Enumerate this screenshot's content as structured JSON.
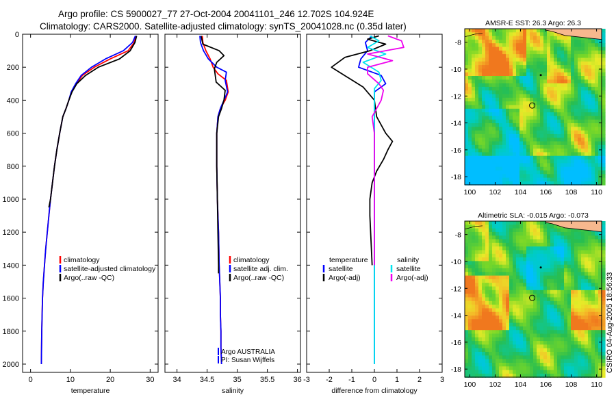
{
  "header": {
    "line1": "Argo profile: CS 5900027_77 27-Oct-2004 20041101_246 12.702S 104.924E",
    "line2": "Climatology: CARS2000. Satellite-adjusted climatology: synTS_20041028.nc (0.35d later)"
  },
  "side_label": "CSIRO 04-Aug-2005 18:56:33",
  "colors": {
    "climatology": "#ff0000",
    "satellite": "#0000ff",
    "argo": "#000000",
    "cyan": "#00e5ee",
    "magenta": "#ee00ee",
    "land": "#f7b88e"
  },
  "chart_data": [
    {
      "type": "line",
      "name": "temperature",
      "xlabel": "temperature",
      "xlim": [
        -2,
        32
      ],
      "ylim": [
        2050,
        0
      ],
      "xticks": [
        "0",
        "10",
        "20",
        "30"
      ],
      "xtick_values": [
        0,
        10,
        20,
        30
      ],
      "yticks": [
        "0",
        "200",
        "400",
        "600",
        "800",
        "1000",
        "1200",
        "1400",
        "1600",
        "1800",
        "2000"
      ],
      "ytick_values": [
        0,
        200,
        400,
        600,
        800,
        1000,
        1200,
        1400,
        1600,
        1800,
        2000
      ],
      "legend": [
        "climatology",
        "satellite-adjusted climatology",
        "Argo(..raw -QC)"
      ],
      "series": [
        {
          "name": "climatology",
          "color": "red",
          "x": [
            26.4,
            26.0,
            24.5,
            20.0,
            16.0,
            13.0,
            11.5,
            10.3,
            9.6,
            8.9,
            8.1,
            7.3,
            6.6,
            6.0,
            5.5,
            5.0,
            4.6,
            4.2,
            3.8,
            3.5,
            3.2,
            3.0,
            2.8,
            2.7
          ],
          "y": [
            10,
            50,
            100,
            150,
            200,
            250,
            300,
            350,
            400,
            450,
            500,
            600,
            700,
            800,
            900,
            1000,
            1100,
            1200,
            1300,
            1400,
            1500,
            1600,
            1800,
            2000
          ]
        },
        {
          "name": "satellite",
          "color": "blue",
          "x": [
            26.3,
            25.6,
            23.3,
            18.8,
            15.3,
            12.7,
            11.3,
            10.2,
            9.6,
            8.9,
            8.1,
            7.3,
            6.6,
            6.0,
            5.5,
            5.0,
            4.6,
            4.2,
            3.8,
            3.5,
            3.2,
            3.0,
            2.8,
            2.7
          ],
          "y": [
            10,
            50,
            100,
            150,
            200,
            250,
            300,
            350,
            400,
            450,
            500,
            600,
            700,
            800,
            900,
            1000,
            1100,
            1200,
            1300,
            1400,
            1500,
            1600,
            1800,
            2000
          ]
        },
        {
          "name": "argo",
          "color": "black",
          "x": [
            26.6,
            26.2,
            25.0,
            22.3,
            17.0,
            13.8,
            11.6,
            10.4,
            9.6,
            8.9,
            8.1,
            7.3,
            6.6,
            6.0,
            5.5,
            5.0,
            4.6
          ],
          "y": [
            10,
            50,
            100,
            150,
            200,
            250,
            300,
            350,
            400,
            450,
            500,
            600,
            700,
            800,
            900,
            1000,
            1050
          ]
        }
      ]
    },
    {
      "type": "line",
      "name": "salinity",
      "xlabel": "salinity",
      "xlim": [
        33.8,
        36.05
      ],
      "ylim": [
        2050,
        0
      ],
      "xticks": [
        "34",
        "34.5",
        "35",
        "35.5",
        "36"
      ],
      "xtick_values": [
        34,
        34.5,
        35,
        35.5,
        36
      ],
      "legend": [
        "climatology",
        "satellite adj. clim.",
        "Argo(..raw -QC)"
      ],
      "annotation": [
        "Argo AUSTRALIA",
        "PI: Susan Wijffels"
      ],
      "series": [
        {
          "name": "climatology",
          "color": "red",
          "x": [
            34.42,
            34.43,
            34.48,
            34.55,
            34.6,
            34.68,
            34.82,
            34.85,
            34.8,
            34.72,
            34.68,
            34.66,
            34.66,
            34.67,
            34.69,
            34.7,
            34.71,
            34.72,
            34.72,
            34.73,
            34.73,
            34.74
          ],
          "y": [
            10,
            50,
            100,
            150,
            200,
            240,
            280,
            350,
            400,
            450,
            500,
            600,
            800,
            1000,
            1200,
            1400,
            1500,
            1600,
            1700,
            1800,
            1900,
            2000
          ]
        },
        {
          "name": "satellite",
          "color": "blue",
          "x": [
            34.38,
            34.39,
            34.44,
            34.52,
            34.66,
            34.82,
            34.8,
            34.84,
            34.78,
            34.72,
            34.68,
            34.66,
            34.66,
            34.67,
            34.69,
            34.7,
            34.71,
            34.72,
            34.72,
            34.73,
            34.73,
            34.74
          ],
          "y": [
            10,
            50,
            100,
            150,
            200,
            230,
            280,
            350,
            400,
            450,
            500,
            600,
            800,
            1000,
            1200,
            1400,
            1500,
            1600,
            1700,
            1800,
            1900,
            2000
          ]
        },
        {
          "name": "argo",
          "color": "black",
          "x": [
            34.4,
            34.43,
            34.7,
            34.78,
            34.66,
            34.62,
            34.65,
            34.8,
            34.78,
            34.74,
            34.69,
            34.66,
            34.66,
            34.67,
            34.68,
            34.69,
            34.69
          ],
          "y": [
            10,
            60,
            100,
            130,
            170,
            210,
            290,
            340,
            400,
            450,
            500,
            600,
            800,
            1000,
            1200,
            1400,
            1450
          ]
        }
      ]
    },
    {
      "type": "line",
      "name": "difference",
      "xlabel": "difference from climatology",
      "xlim": [
        -3,
        3
      ],
      "ylim": [
        2050,
        0
      ],
      "xticks": [
        "-3",
        "-2",
        "-1",
        "0",
        "1",
        "2",
        "3"
      ],
      "xtick_values": [
        -3,
        -2,
        -1,
        0,
        1,
        2,
        3
      ],
      "legend": [
        {
          "label": "temperature",
          "color": "none"
        },
        {
          "label": "satellite",
          "color": "blue"
        },
        {
          "label": "Argo(-adj)",
          "color": "black"
        },
        {
          "label": "salinity",
          "color": "none"
        },
        {
          "label": "satellite",
          "color": "cyan"
        },
        {
          "label": "Argo(-adj)",
          "color": "magenta"
        }
      ],
      "series": [
        {
          "name": "temperature satellite",
          "color": "blue",
          "x": [
            -0.1,
            -0.4,
            -0.3,
            -0.6,
            -0.7,
            0.3,
            0.5,
            0.0,
            0.0,
            0.0,
            0.0
          ],
          "y": [
            10,
            50,
            100,
            150,
            200,
            250,
            300,
            350,
            400,
            500,
            2000
          ]
        },
        {
          "name": "temperature argo",
          "color": "black",
          "x": [
            0.2,
            -0.3,
            0.5,
            -0.2,
            -1.3,
            -1.9,
            -1.2,
            -0.5,
            0.0,
            0.1,
            0.5,
            0.8,
            0.6,
            0.4,
            0.1,
            -0.1,
            -0.2,
            -0.2,
            -0.1
          ],
          "y": [
            10,
            30,
            60,
            100,
            140,
            200,
            260,
            320,
            400,
            500,
            600,
            650,
            700,
            760,
            830,
            900,
            1000,
            1100,
            1400
          ]
        },
        {
          "name": "salinity satellite",
          "color": "cyan",
          "x": [
            -0.2,
            0.2,
            -0.3,
            0.5,
            -0.5,
            0.2,
            0.3,
            0.0,
            0.0,
            0.0,
            0.0
          ],
          "y": [
            10,
            40,
            80,
            120,
            170,
            230,
            280,
            330,
            400,
            500,
            2000
          ]
        },
        {
          "name": "salinity argo",
          "color": "magenta",
          "x": [
            0.6,
            1.2,
            1.3,
            -0.3,
            0.8,
            -0.3,
            -0.3,
            0.2,
            0.4,
            0.3,
            -0.1,
            0.0,
            0.0,
            0.0
          ],
          "y": [
            10,
            40,
            80,
            120,
            160,
            200,
            240,
            300,
            340,
            400,
            500,
            600,
            1000,
            1400
          ]
        }
      ]
    },
    {
      "type": "heatmap",
      "name": "sst_map",
      "title": "AMSR-E SST: 26.3 Argo: 26.3",
      "xlim": [
        99.6,
        110.4
      ],
      "ylim": [
        -18.6,
        -7
      ],
      "xticks": [
        "100",
        "102",
        "104",
        "106",
        "108",
        "110"
      ],
      "xtick_values": [
        100,
        102,
        104,
        106,
        108,
        110
      ],
      "yticks": [
        "-8",
        "-10",
        "-12",
        "-14",
        "-16",
        "-18"
      ],
      "ytick_values": [
        -8,
        -10,
        -12,
        -14,
        -16,
        -18
      ],
      "marker": {
        "lon": 104.924,
        "lat": -12.702
      }
    },
    {
      "type": "heatmap",
      "name": "sla_map",
      "title": "Altimetric SLA: -0.015 Argo: -0.073",
      "xlim": [
        99.6,
        110.4
      ],
      "ylim": [
        -18.6,
        -7
      ],
      "xticks": [
        "100",
        "102",
        "104",
        "106",
        "108",
        "110"
      ],
      "xtick_values": [
        100,
        102,
        104,
        106,
        108,
        110
      ],
      "yticks": [
        "-8",
        "-10",
        "-12",
        "-14",
        "-16",
        "-18"
      ],
      "ytick_values": [
        -8,
        -10,
        -12,
        -14,
        -16,
        -18
      ],
      "marker": {
        "lon": 104.924,
        "lat": -12.702
      }
    }
  ]
}
